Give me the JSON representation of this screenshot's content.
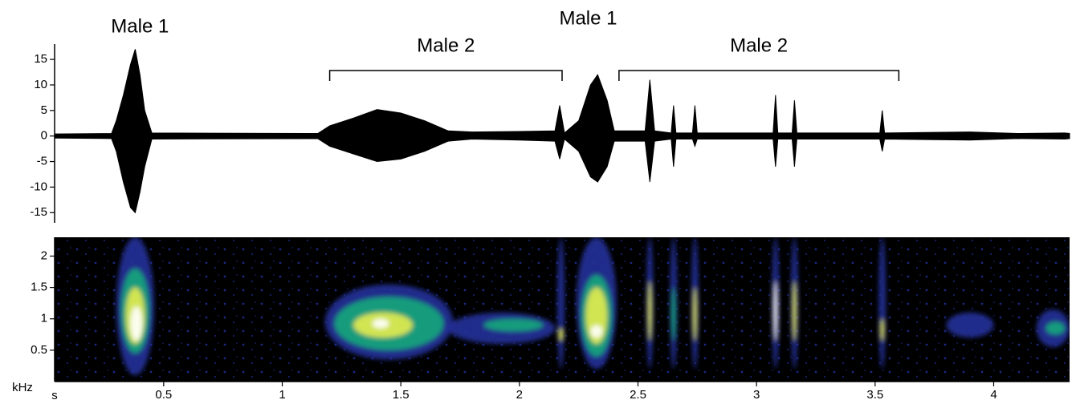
{
  "chart_data": [
    {
      "type": "waveform",
      "color": "#000000",
      "xlim": [
        0.04,
        4.32
      ],
      "ylim": [
        -17,
        18
      ],
      "yticks": [
        -15,
        -10,
        -5,
        0,
        5,
        10,
        15
      ],
      "x": [
        0.04,
        0.28,
        0.3,
        0.33,
        0.36,
        0.38,
        0.4,
        0.42,
        0.45,
        1.15,
        1.2,
        1.3,
        1.4,
        1.5,
        1.6,
        1.7,
        1.8,
        2.0,
        2.15,
        2.17,
        2.19,
        2.25,
        2.3,
        2.33,
        2.37,
        2.4,
        2.53,
        2.55,
        2.57,
        2.64,
        2.65,
        2.66,
        2.73,
        2.74,
        2.75,
        3.07,
        3.08,
        3.09,
        3.15,
        3.16,
        3.17,
        3.52,
        3.53,
        3.54,
        3.9,
        4.1,
        4.3,
        4.32
      ],
      "upper": [
        0.4,
        0.5,
        3,
        8,
        14,
        17,
        12,
        5,
        0.6,
        0.5,
        2,
        3.5,
        5.2,
        4.5,
        3,
        1,
        0.8,
        0.9,
        1,
        6,
        0.6,
        3,
        10,
        12,
        7,
        1,
        1,
        11,
        1,
        0.6,
        6,
        0.6,
        0.6,
        6,
        0.6,
        0.6,
        8,
        0.6,
        0.6,
        7,
        0.6,
        0.6,
        5,
        0.6,
        0.8,
        0.5,
        0.6,
        0.5
      ],
      "lower": [
        -0.4,
        -0.5,
        -3,
        -9,
        -14,
        -15,
        -11,
        -6,
        -0.6,
        -0.5,
        -2,
        -3.5,
        -5,
        -4.5,
        -3,
        -1,
        -0.6,
        -0.8,
        -1,
        -4.5,
        -0.6,
        -3,
        -8,
        -9,
        -6,
        -1,
        -1,
        -9,
        -1,
        -0.6,
        -6,
        -0.6,
        -0.6,
        -2,
        -0.6,
        -0.6,
        -6,
        -0.6,
        -0.6,
        -6,
        -0.6,
        -0.6,
        -3,
        -0.6,
        -0.8,
        -0.5,
        -0.6,
        -0.5
      ],
      "annotations": [
        {
          "text": "Male 1",
          "x": 0.4
        },
        {
          "text": "Male 2",
          "x": [
            1.2,
            2.18
          ]
        },
        {
          "text": "Male 1",
          "x": 2.29
        },
        {
          "text": "Male 2",
          "x": [
            2.42,
            3.6
          ]
        }
      ]
    },
    {
      "type": "spectrogram",
      "xlabel": "s",
      "ylabel": "kHz",
      "xlim": [
        0.04,
        4.32
      ],
      "ylim": [
        0,
        2.3
      ],
      "xticks": [
        0.5,
        1,
        1.5,
        2,
        2.5,
        3,
        3.5,
        4
      ],
      "yticks": [
        0.5,
        1,
        1.5,
        2
      ],
      "levels": [
        "#22309a",
        "#17a97a",
        "#e6ec4c",
        "#ffffff"
      ],
      "events": [
        {
          "x": [
            0.3,
            0.46
          ],
          "y": [
            0.1,
            2.3
          ],
          "level": 0
        },
        {
          "x": [
            0.32,
            0.44
          ],
          "y": [
            0.45,
            1.8
          ],
          "level": 1
        },
        {
          "x": [
            0.34,
            0.42
          ],
          "y": [
            0.6,
            1.5
          ],
          "level": 2
        },
        {
          "x": [
            0.36,
            0.41
          ],
          "y": [
            0.65,
            1.2
          ],
          "level": 3
        },
        {
          "x": [
            1.18,
            1.72
          ],
          "y": [
            0.35,
            1.55
          ],
          "level": 0
        },
        {
          "x": [
            1.22,
            1.68
          ],
          "y": [
            0.5,
            1.35
          ],
          "level": 1
        },
        {
          "x": [
            1.3,
            1.55
          ],
          "y": [
            0.7,
            1.1
          ],
          "level": 2
        },
        {
          "x": [
            1.38,
            1.45
          ],
          "y": [
            0.85,
            1.0
          ],
          "level": 3
        },
        {
          "x": [
            1.7,
            2.15
          ],
          "y": [
            0.6,
            1.1
          ],
          "level": 0
        },
        {
          "x": [
            1.85,
            2.1
          ],
          "y": [
            0.8,
            1.0
          ],
          "level": 1
        },
        {
          "x": [
            2.16,
            2.19
          ],
          "y": [
            0.2,
            2.3
          ],
          "level": 0
        },
        {
          "x": [
            2.165,
            2.185
          ],
          "y": [
            0.65,
            0.85
          ],
          "level": 2
        },
        {
          "x": [
            2.24,
            2.41
          ],
          "y": [
            0.2,
            2.3
          ],
          "level": 0
        },
        {
          "x": [
            2.26,
            2.39
          ],
          "y": [
            0.4,
            1.7
          ],
          "level": 1
        },
        {
          "x": [
            2.28,
            2.37
          ],
          "y": [
            0.6,
            1.5
          ],
          "level": 2
        },
        {
          "x": [
            2.3,
            2.35
          ],
          "y": [
            0.7,
            0.9
          ],
          "level": 3
        },
        {
          "x": [
            2.535,
            2.565
          ],
          "y": [
            0.2,
            2.3
          ],
          "level": 0
        },
        {
          "x": [
            2.542,
            2.558
          ],
          "y": [
            0.65,
            1.6
          ],
          "level": 2
        },
        {
          "x": [
            2.635,
            2.665
          ],
          "y": [
            0.2,
            2.3
          ],
          "level": 0
        },
        {
          "x": [
            2.642,
            2.658
          ],
          "y": [
            0.65,
            1.5
          ],
          "level": 1
        },
        {
          "x": [
            2.725,
            2.755
          ],
          "y": [
            0.2,
            2.3
          ],
          "level": 0
        },
        {
          "x": [
            2.732,
            2.748
          ],
          "y": [
            0.65,
            1.5
          ],
          "level": 2
        },
        {
          "x": [
            3.065,
            3.095
          ],
          "y": [
            0.2,
            2.3
          ],
          "level": 0
        },
        {
          "x": [
            3.072,
            3.088
          ],
          "y": [
            0.65,
            1.6
          ],
          "level": 3
        },
        {
          "x": [
            3.145,
            3.175
          ],
          "y": [
            0.2,
            2.3
          ],
          "level": 0
        },
        {
          "x": [
            3.152,
            3.168
          ],
          "y": [
            0.65,
            1.6
          ],
          "level": 2
        },
        {
          "x": [
            3.515,
            3.545
          ],
          "y": [
            0.2,
            2.3
          ],
          "level": 0
        },
        {
          "x": [
            3.522,
            3.538
          ],
          "y": [
            0.65,
            1.0
          ],
          "level": 2
        },
        {
          "x": [
            3.8,
            4.0
          ],
          "y": [
            0.7,
            1.1
          ],
          "level": 0
        },
        {
          "x": [
            4.18,
            4.32
          ],
          "y": [
            0.55,
            1.15
          ],
          "level": 0
        },
        {
          "x": [
            4.22,
            4.3
          ],
          "y": [
            0.75,
            0.95
          ],
          "level": 1
        }
      ]
    }
  ]
}
